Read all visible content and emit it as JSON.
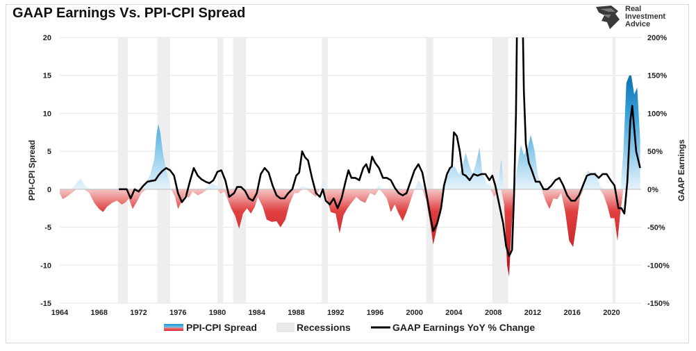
{
  "title": "GAAP Earnings Vs. PPI-CPI Spread",
  "brand": {
    "line1": "Real",
    "line2": "Investment",
    "line3": "Advice"
  },
  "colors": {
    "positive": "#1a8fd0",
    "positive_light": "#d6ecf9",
    "negative": "#d9262c",
    "negative_light": "#f7c9c9",
    "recession": "#eeeeee",
    "earnings": "#000000"
  },
  "chart_data": {
    "type": "area",
    "title": "GAAP Earnings Vs. PPI-CPI Spread",
    "ylabel": "PPI-CPI Spread",
    "y2label": "GAAP Earnings",
    "xlim": [
      1964,
      2023
    ],
    "ylim": [
      -15,
      20
    ],
    "y2lim": [
      -150,
      200
    ],
    "x_ticks": [
      "1964",
      "1968",
      "1972",
      "1976",
      "1980",
      "1984",
      "1988",
      "1992",
      "1996",
      "2000",
      "2004",
      "2008",
      "2012",
      "2016",
      "2020"
    ],
    "y_ticks": [
      "20",
      "15",
      "10",
      "5",
      "0",
      "-5",
      "-10",
      "-15"
    ],
    "y2_ticks": [
      "200%",
      "150%",
      "100%",
      "50%",
      "0%",
      "-50%",
      "-100%",
      "-150%"
    ],
    "grid": true,
    "legend_position": "bottom",
    "legend": [
      "PPI-CPI Spread",
      "Recessions",
      "GAAP Earnings YoY % Change"
    ],
    "recessions": [
      [
        1969.9,
        1970.9
      ],
      [
        1973.9,
        1975.2
      ],
      [
        1980.0,
        1980.6
      ],
      [
        1981.6,
        1982.9
      ],
      [
        1990.6,
        1991.2
      ],
      [
        2001.2,
        2001.9
      ],
      [
        2007.9,
        2009.5
      ],
      [
        2020.1,
        2020.4
      ]
    ],
    "series": [
      {
        "name": "PPI-CPI Spread",
        "axis": "left",
        "points": [
          [
            1964.0,
            -0.5
          ],
          [
            1964.3,
            -1.3
          ],
          [
            1964.7,
            -1.0
          ],
          [
            1965.2,
            -0.5
          ],
          [
            1965.7,
            0.8
          ],
          [
            1966.1,
            1.4
          ],
          [
            1966.5,
            0.6
          ],
          [
            1967.0,
            -0.5
          ],
          [
            1967.5,
            -1.8
          ],
          [
            1968.0,
            -2.6
          ],
          [
            1968.4,
            -3.0
          ],
          [
            1968.8,
            -2.3
          ],
          [
            1969.3,
            -1.8
          ],
          [
            1969.8,
            -1.5
          ],
          [
            1970.3,
            -2.0
          ],
          [
            1970.7,
            -1.7
          ],
          [
            1971.0,
            -1.2
          ],
          [
            1971.4,
            -2.6
          ],
          [
            1971.8,
            -1.7
          ],
          [
            1972.3,
            -0.5
          ],
          [
            1972.8,
            1.0
          ],
          [
            1973.2,
            2.0
          ],
          [
            1973.6,
            4.0
          ],
          [
            1973.8,
            7.0
          ],
          [
            1974.0,
            8.6
          ],
          [
            1974.2,
            7.5
          ],
          [
            1974.5,
            4.5
          ],
          [
            1974.9,
            2.0
          ],
          [
            1975.3,
            0.0
          ],
          [
            1975.7,
            -1.0
          ],
          [
            1976.0,
            -2.6
          ],
          [
            1976.3,
            -1.8
          ],
          [
            1976.7,
            -0.8
          ],
          [
            1977.1,
            -1.1
          ],
          [
            1977.5,
            -0.3
          ],
          [
            1978.0,
            -0.8
          ],
          [
            1978.5,
            -0.5
          ],
          [
            1979.0,
            0.3
          ],
          [
            1979.5,
            0.8
          ],
          [
            1980.0,
            0.4
          ],
          [
            1980.3,
            -0.6
          ],
          [
            1980.7,
            -0.3
          ],
          [
            1981.0,
            -1.2
          ],
          [
            1981.4,
            -2.5
          ],
          [
            1981.8,
            -3.5
          ],
          [
            1982.2,
            -5.2
          ],
          [
            1982.6,
            -3.2
          ],
          [
            1983.0,
            -2.5
          ],
          [
            1983.4,
            -3.2
          ],
          [
            1983.8,
            -2.3
          ],
          [
            1984.1,
            -1.0
          ],
          [
            1984.6,
            -2.3
          ],
          [
            1985.0,
            -4.0
          ],
          [
            1985.5,
            -4.3
          ],
          [
            1986.0,
            -4.2
          ],
          [
            1986.4,
            -5.0
          ],
          [
            1986.9,
            -4.0
          ],
          [
            1987.3,
            -2.0
          ],
          [
            1987.8,
            -0.5
          ],
          [
            1988.2,
            -0.5
          ],
          [
            1988.6,
            0.4
          ],
          [
            1989.0,
            0.3
          ],
          [
            1989.5,
            -0.5
          ],
          [
            1990.0,
            -1.0
          ],
          [
            1990.4,
            0.0
          ],
          [
            1990.8,
            1.2
          ],
          [
            1991.1,
            -1.2
          ],
          [
            1991.5,
            -3.0
          ],
          [
            1992.0,
            -3.2
          ],
          [
            1992.4,
            -5.8
          ],
          [
            1992.8,
            -3.4
          ],
          [
            1993.2,
            -2.5
          ],
          [
            1993.6,
            -1.8
          ],
          [
            1994.1,
            -1.0
          ],
          [
            1994.5,
            -1.5
          ],
          [
            1995.0,
            -1.8
          ],
          [
            1995.5,
            -0.5
          ],
          [
            1996.0,
            -0.8
          ],
          [
            1996.4,
            0.5
          ],
          [
            1996.8,
            -0.5
          ],
          [
            1997.2,
            -1.2
          ],
          [
            1997.6,
            -3.0
          ],
          [
            1998.0,
            -2.0
          ],
          [
            1998.4,
            -3.2
          ],
          [
            1998.8,
            -4.2
          ],
          [
            1999.2,
            -3.0
          ],
          [
            1999.6,
            -1.5
          ],
          [
            2000.0,
            0.0
          ],
          [
            2000.4,
            1.2
          ],
          [
            2000.8,
            0.5
          ],
          [
            2001.2,
            -1.5
          ],
          [
            2001.6,
            -4.5
          ],
          [
            2001.9,
            -7.3
          ],
          [
            2002.3,
            -5.0
          ],
          [
            2002.7,
            -3.0
          ],
          [
            2003.0,
            1.2
          ],
          [
            2003.3,
            1.5
          ],
          [
            2003.7,
            2.8
          ],
          [
            2004.1,
            3.0
          ],
          [
            2004.5,
            2.0
          ],
          [
            2004.8,
            2.7
          ],
          [
            2005.2,
            4.8
          ],
          [
            2005.6,
            3.0
          ],
          [
            2005.9,
            2.0
          ],
          [
            2006.2,
            3.2
          ],
          [
            2006.6,
            5.5
          ],
          [
            2006.9,
            2.0
          ],
          [
            2007.3,
            0.8
          ],
          [
            2007.7,
            0.5
          ],
          [
            2008.1,
            -1.0
          ],
          [
            2008.5,
            0.8
          ],
          [
            2008.8,
            4.0
          ],
          [
            2009.1,
            -2.0
          ],
          [
            2009.4,
            -10.0
          ],
          [
            2009.6,
            -11.5
          ],
          [
            2009.9,
            -4.0
          ],
          [
            2010.2,
            1.0
          ],
          [
            2010.5,
            3.5
          ],
          [
            2010.8,
            5.8
          ],
          [
            2011.1,
            4.5
          ],
          [
            2011.5,
            5.5
          ],
          [
            2011.8,
            7.2
          ],
          [
            2012.2,
            5.0
          ],
          [
            2012.5,
            2.0
          ],
          [
            2012.9,
            0.0
          ],
          [
            2013.3,
            -1.5
          ],
          [
            2013.7,
            -2.6
          ],
          [
            2014.1,
            -1.2
          ],
          [
            2014.5,
            -1.3
          ],
          [
            2014.9,
            -0.5
          ],
          [
            2015.3,
            -3.0
          ],
          [
            2015.7,
            -6.8
          ],
          [
            2016.1,
            -7.6
          ],
          [
            2016.4,
            -5.0
          ],
          [
            2016.8,
            -1.0
          ],
          [
            2017.2,
            0.6
          ],
          [
            2017.6,
            2.5
          ],
          [
            2018.0,
            2.0
          ],
          [
            2018.4,
            2.3
          ],
          [
            2018.8,
            0.5
          ],
          [
            2019.2,
            -0.8
          ],
          [
            2019.6,
            -2.3
          ],
          [
            2019.9,
            -3.8
          ],
          [
            2020.3,
            -3.8
          ],
          [
            2020.6,
            -6.8
          ],
          [
            2020.9,
            -3.0
          ],
          [
            2021.2,
            5.0
          ],
          [
            2021.5,
            14.0
          ],
          [
            2021.8,
            15.0
          ],
          [
            2022.0,
            15.0
          ],
          [
            2022.3,
            12.5
          ],
          [
            2022.6,
            13.4
          ],
          [
            2022.9,
            6.5
          ]
        ]
      },
      {
        "name": "GAAP Earnings YoY % Change",
        "axis": "right",
        "points": [
          [
            1970.0,
            0
          ],
          [
            1970.8,
            0
          ],
          [
            1971.2,
            -12
          ],
          [
            1971.6,
            0
          ],
          [
            1972.0,
            -3
          ],
          [
            1972.5,
            5
          ],
          [
            1972.9,
            10
          ],
          [
            1973.3,
            11
          ],
          [
            1973.7,
            12
          ],
          [
            1974.0,
            18
          ],
          [
            1974.4,
            24
          ],
          [
            1974.8,
            28
          ],
          [
            1975.2,
            25
          ],
          [
            1975.6,
            18
          ],
          [
            1976.0,
            -5
          ],
          [
            1976.4,
            -17
          ],
          [
            1976.8,
            -10
          ],
          [
            1977.2,
            10
          ],
          [
            1977.6,
            28
          ],
          [
            1978.0,
            18
          ],
          [
            1978.4,
            13
          ],
          [
            1978.8,
            10
          ],
          [
            1979.2,
            8
          ],
          [
            1979.6,
            12
          ],
          [
            1980.0,
            23
          ],
          [
            1980.4,
            25
          ],
          [
            1980.8,
            12
          ],
          [
            1981.2,
            -10
          ],
          [
            1981.7,
            -5
          ],
          [
            1982.0,
            3
          ],
          [
            1982.4,
            3
          ],
          [
            1982.8,
            -2
          ],
          [
            1983.2,
            -12
          ],
          [
            1983.6,
            -15
          ],
          [
            1984.0,
            -5
          ],
          [
            1984.4,
            20
          ],
          [
            1984.8,
            28
          ],
          [
            1985.2,
            22
          ],
          [
            1985.6,
            5
          ],
          [
            1986.0,
            -8
          ],
          [
            1986.4,
            -12
          ],
          [
            1986.8,
            -12
          ],
          [
            1987.2,
            -5
          ],
          [
            1987.6,
            0
          ],
          [
            1988.0,
            18
          ],
          [
            1988.3,
            22
          ],
          [
            1988.6,
            50
          ],
          [
            1988.9,
            42
          ],
          [
            1989.2,
            38
          ],
          [
            1989.6,
            15
          ],
          [
            1990.0,
            -5
          ],
          [
            1990.4,
            -10
          ],
          [
            1990.7,
            0
          ],
          [
            1991.0,
            -15
          ],
          [
            1991.4,
            -20
          ],
          [
            1991.8,
            -12
          ],
          [
            1992.2,
            -25
          ],
          [
            1992.6,
            -12
          ],
          [
            1993.0,
            10
          ],
          [
            1993.3,
            25
          ],
          [
            1993.6,
            15
          ],
          [
            1994.0,
            15
          ],
          [
            1994.4,
            12
          ],
          [
            1994.8,
            28
          ],
          [
            1995.1,
            33
          ],
          [
            1995.4,
            22
          ],
          [
            1995.7,
            43
          ],
          [
            1996.0,
            35
          ],
          [
            1996.4,
            28
          ],
          [
            1996.8,
            15
          ],
          [
            1997.2,
            15
          ],
          [
            1997.6,
            12
          ],
          [
            1998.0,
            2
          ],
          [
            1998.4,
            -5
          ],
          [
            1998.8,
            -8
          ],
          [
            1999.2,
            -5
          ],
          [
            1999.6,
            10
          ],
          [
            2000.0,
            25
          ],
          [
            2000.4,
            33
          ],
          [
            2000.8,
            22
          ],
          [
            2001.2,
            -5
          ],
          [
            2001.6,
            -35
          ],
          [
            2001.9,
            -55
          ],
          [
            2002.3,
            -45
          ],
          [
            2002.7,
            -25
          ],
          [
            2003.0,
            5
          ],
          [
            2003.3,
            20
          ],
          [
            2003.6,
            28
          ],
          [
            2003.8,
            30
          ],
          [
            2004.0,
            75
          ],
          [
            2004.3,
            70
          ],
          [
            2004.6,
            50
          ],
          [
            2004.9,
            20
          ],
          [
            2005.2,
            18
          ],
          [
            2005.6,
            12
          ],
          [
            2006.0,
            20
          ],
          [
            2006.4,
            18
          ],
          [
            2006.8,
            20
          ],
          [
            2007.2,
            20
          ],
          [
            2007.6,
            12
          ],
          [
            2007.9,
            18
          ],
          [
            2008.2,
            5
          ],
          [
            2008.6,
            -20
          ],
          [
            2009.0,
            -45
          ],
          [
            2009.3,
            -75
          ],
          [
            2009.6,
            -88
          ],
          [
            2009.9,
            -80
          ],
          [
            2010.1,
            -10
          ],
          [
            2010.3,
            100
          ],
          [
            2010.4,
            210
          ],
          [
            2011.0,
            210
          ],
          [
            2011.1,
            130
          ],
          [
            2011.3,
            60
          ],
          [
            2011.6,
            35
          ],
          [
            2011.9,
            25
          ],
          [
            2012.3,
            10
          ],
          [
            2012.7,
            10
          ],
          [
            2013.1,
            0
          ],
          [
            2013.5,
            0
          ],
          [
            2013.9,
            5
          ],
          [
            2014.3,
            12
          ],
          [
            2014.7,
            15
          ],
          [
            2015.1,
            5
          ],
          [
            2015.5,
            -8
          ],
          [
            2015.9,
            -15
          ],
          [
            2016.3,
            -15
          ],
          [
            2016.7,
            -8
          ],
          [
            2017.1,
            5
          ],
          [
            2017.5,
            18
          ],
          [
            2017.9,
            20
          ],
          [
            2018.3,
            20
          ],
          [
            2018.7,
            15
          ],
          [
            2019.1,
            20
          ],
          [
            2019.5,
            20
          ],
          [
            2019.9,
            12
          ],
          [
            2020.3,
            5
          ],
          [
            2020.7,
            -25
          ],
          [
            2021.0,
            -25
          ],
          [
            2021.3,
            -32
          ],
          [
            2021.6,
            10
          ],
          [
            2021.9,
            90
          ],
          [
            2022.1,
            110
          ],
          [
            2022.5,
            50
          ],
          [
            2022.9,
            28
          ]
        ]
      }
    ]
  }
}
